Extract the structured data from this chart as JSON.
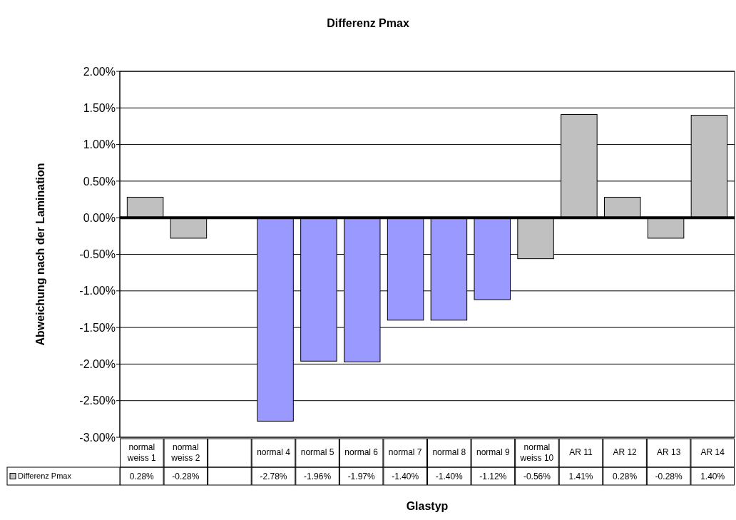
{
  "chart_data": {
    "type": "bar",
    "title": "Differenz Pmax",
    "xlabel": "Glastyp",
    "ylabel": "Abweichung nach der Lamination",
    "categories": [
      "normal weiss 1",
      "normal weiss 2",
      null,
      "normal 4",
      "normal 5",
      "normal 6",
      "normal 7",
      "normal 8",
      "normal 9",
      "normal weiss 10",
      "AR 11",
      "AR 12",
      "AR 13",
      "AR 14"
    ],
    "series": [
      {
        "name": "Differenz Pmax",
        "color": "#c0c0c0",
        "colors": [
          "#c0c0c0",
          "#c0c0c0",
          null,
          "#9999ff",
          "#9999ff",
          "#9999ff",
          "#9999ff",
          "#9999ff",
          "#9999ff",
          "#c0c0c0",
          "#c0c0c0",
          "#c0c0c0",
          "#c0c0c0",
          "#c0c0c0"
        ],
        "values": [
          0.28,
          -0.28,
          null,
          -2.78,
          -1.96,
          -1.97,
          -1.4,
          -1.4,
          -1.12,
          -0.56,
          1.41,
          0.28,
          -0.28,
          1.4
        ],
        "value_labels": [
          "0.28%",
          "-0.28%",
          null,
          "-2.78%",
          "-1.96%",
          "-1.97%",
          "-1.40%",
          "-1.40%",
          "-1.12%",
          "-0.56%",
          "1.41%",
          "0.28%",
          "-0.28%",
          "1.40%"
        ]
      }
    ],
    "ylim": [
      -3,
      2
    ],
    "yticks": [
      {
        "value": -3,
        "label": "-3.00%"
      },
      {
        "value": -2.5,
        "label": "-2.50%"
      },
      {
        "value": -2,
        "label": "-2.00%"
      },
      {
        "value": -1.5,
        "label": "-1.50%"
      },
      {
        "value": -1,
        "label": "-1.00%"
      },
      {
        "value": -0.5,
        "label": "-0.50%"
      },
      {
        "value": 0,
        "label": "0.00%"
      },
      {
        "value": 0.5,
        "label": "0.50%"
      },
      {
        "value": 1,
        "label": "1.00%"
      },
      {
        "value": 1.5,
        "label": "1.50%"
      },
      {
        "value": 2,
        "label": "2.00%"
      }
    ],
    "grid": "y",
    "legend": "bottom",
    "data_labels": true
  }
}
